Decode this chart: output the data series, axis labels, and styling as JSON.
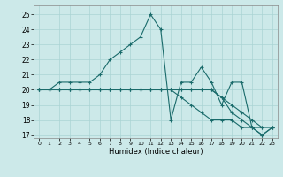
{
  "xlabel": "Humidex (Indice chaleur)",
  "xlim": [
    -0.5,
    23.5
  ],
  "ylim": [
    16.8,
    25.6
  ],
  "yticks": [
    17,
    18,
    19,
    20,
    21,
    22,
    23,
    24,
    25
  ],
  "xticks": [
    0,
    1,
    2,
    3,
    4,
    5,
    6,
    7,
    8,
    9,
    10,
    11,
    12,
    13,
    14,
    15,
    16,
    17,
    18,
    19,
    20,
    21,
    22,
    23
  ],
  "background_color": "#cce9e9",
  "grid_color": "#aad4d4",
  "line_color": "#1a6b6b",
  "series": [
    {
      "x": [
        0,
        1,
        2,
        3,
        4,
        5,
        6,
        7,
        8,
        9,
        10,
        11,
        12,
        13,
        14,
        15,
        16,
        17,
        18,
        19,
        20,
        21,
        22
      ],
      "y": [
        20,
        20,
        20.5,
        20.5,
        20.5,
        20.5,
        21,
        22,
        22.5,
        23,
        23.5,
        25,
        24,
        18,
        20.5,
        20.5,
        21.5,
        20.5,
        19,
        20.5,
        20.5,
        17.5,
        17.5
      ]
    },
    {
      "x": [
        0,
        1,
        2,
        3,
        4,
        5,
        6,
        7,
        8,
        9,
        10,
        11,
        12,
        13,
        14,
        15,
        16,
        17,
        18,
        19,
        20,
        21,
        22,
        23
      ],
      "y": [
        20,
        20,
        20,
        20,
        20,
        20,
        20,
        20,
        20,
        20,
        20,
        20,
        20,
        20,
        20,
        20,
        20,
        20,
        19.5,
        19,
        18.5,
        18,
        17.5,
        17.5
      ]
    },
    {
      "x": [
        0,
        1,
        2,
        3,
        4,
        5,
        6,
        7,
        8,
        9,
        10,
        11,
        12,
        13,
        14,
        15,
        16,
        17,
        18,
        19,
        20,
        21,
        22,
        23
      ],
      "y": [
        20,
        20,
        20,
        20,
        20,
        20,
        20,
        20,
        20,
        20,
        20,
        20,
        20,
        20,
        20,
        20,
        20,
        20,
        19.5,
        18.5,
        18,
        17.5,
        17,
        17.5
      ]
    },
    {
      "x": [
        0,
        1,
        2,
        3,
        4,
        5,
        6,
        7,
        8,
        9,
        10,
        11,
        12,
        13,
        14,
        15,
        16,
        17,
        18,
        19,
        20,
        21,
        22,
        23
      ],
      "y": [
        20,
        20,
        20,
        20,
        20,
        20,
        20,
        20,
        20,
        20,
        20,
        20,
        20,
        20,
        19.5,
        19,
        18.5,
        18,
        18,
        18,
        17.5,
        17.5,
        17,
        17.5
      ]
    }
  ]
}
